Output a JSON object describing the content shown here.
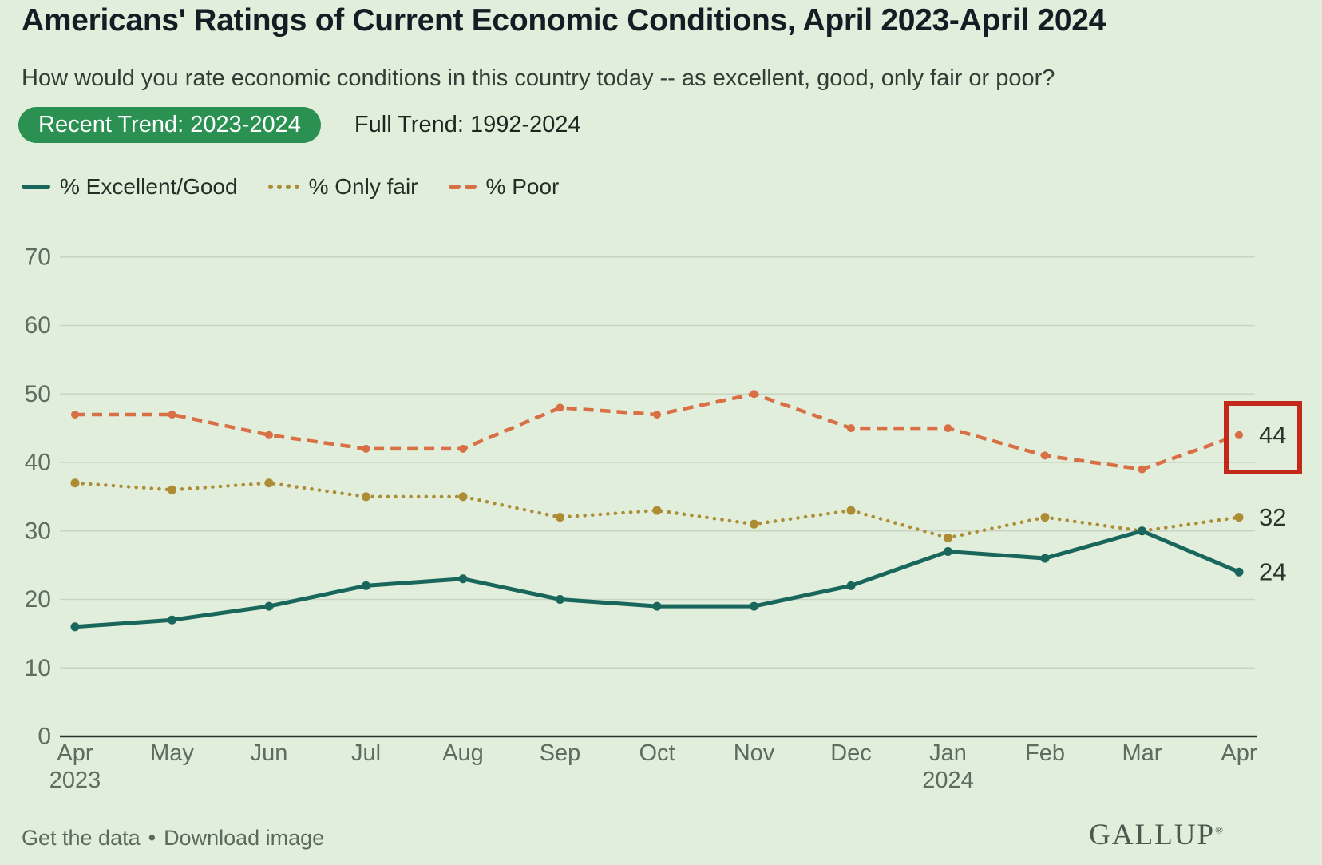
{
  "header": {
    "title": "Americans' Ratings of Current Economic Conditions, April 2023-April 2024",
    "subtitle": "How would you rate economic conditions in this country today -- as excellent, good, only fair or poor?"
  },
  "tabs": [
    {
      "label": "Recent Trend: 2023-2024",
      "active": true
    },
    {
      "label": "Full Trend: 1992-2024",
      "active": false
    }
  ],
  "legend": [
    {
      "label": "% Excellent/Good",
      "color": "#18665c",
      "style": "solid"
    },
    {
      "label": "% Only fair",
      "color": "#ad8c33",
      "style": "dotted"
    },
    {
      "label": "% Poor",
      "color": "#d96f44",
      "style": "dashed"
    }
  ],
  "chart_data": {
    "type": "line",
    "x": [
      "Apr",
      "May",
      "Jun",
      "Jul",
      "Aug",
      "Sep",
      "Oct",
      "Nov",
      "Dec",
      "Jan",
      "Feb",
      "Mar",
      "Apr"
    ],
    "x_sub": {
      "0": "2023",
      "9": "2024"
    },
    "series": [
      {
        "name": "% Excellent/Good",
        "color": "#18665c",
        "line_style": "solid",
        "values": [
          16,
          17,
          19,
          22,
          23,
          20,
          19,
          19,
          22,
          27,
          26,
          30,
          24
        ],
        "end_label": "24",
        "highlight_end": false
      },
      {
        "name": "% Only fair",
        "color": "#ad8c33",
        "line_style": "dotted",
        "values": [
          37,
          36,
          37,
          35,
          35,
          32,
          33,
          31,
          33,
          29,
          32,
          30,
          32
        ],
        "end_label": "32",
        "highlight_end": false
      },
      {
        "name": "% Poor",
        "color": "#d96f44",
        "line_style": "dashed",
        "values": [
          47,
          47,
          44,
          42,
          42,
          48,
          47,
          50,
          45,
          45,
          41,
          39,
          44
        ],
        "end_label": "44",
        "highlight_end": true
      }
    ],
    "ylim": [
      0,
      70
    ],
    "yticks": [
      0,
      10,
      20,
      30,
      40,
      50,
      60,
      70
    ],
    "grid": true,
    "legend_position": "top",
    "highlight_box_color": "#c2291a",
    "title": "Americans' Ratings of Current Economic Conditions, April 2023-April 2024",
    "xlabel": "",
    "ylabel": ""
  },
  "footer": {
    "link_get_data": "Get the data",
    "separator": "•",
    "link_download": "Download image",
    "logo": "GALLUP",
    "logo_mark": "®"
  }
}
